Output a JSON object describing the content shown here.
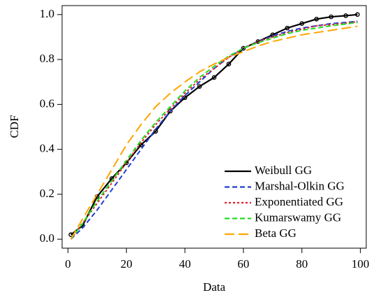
{
  "chart_data": {
    "type": "line",
    "xlabel": "Data",
    "ylabel": "CDF",
    "x": [
      1,
      5,
      10,
      15,
      20,
      25,
      30,
      35,
      40,
      45,
      50,
      55,
      60,
      65,
      70,
      75,
      80,
      85,
      90,
      95,
      99
    ],
    "series": [
      {
        "name": "Weibull GG",
        "color": "#000000",
        "dash": "solid",
        "markers": true,
        "values": [
          0.02,
          0.06,
          0.19,
          0.27,
          0.34,
          0.42,
          0.48,
          0.57,
          0.63,
          0.68,
          0.72,
          0.78,
          0.85,
          0.88,
          0.91,
          0.94,
          0.96,
          0.98,
          0.99,
          0.995,
          1.0
        ]
      },
      {
        "name": "Marshal-Olkin GG",
        "color": "#1f3fd0",
        "dash": "dashed",
        "values": [
          0.0,
          0.05,
          0.13,
          0.22,
          0.31,
          0.4,
          0.49,
          0.57,
          0.64,
          0.7,
          0.76,
          0.81,
          0.85,
          0.88,
          0.905,
          0.925,
          0.94,
          0.95,
          0.96,
          0.965,
          0.97
        ]
      },
      {
        "name": "Exponentiated GG",
        "color": "#e0202a",
        "dash": "dotted",
        "values": [
          0.0,
          0.07,
          0.16,
          0.25,
          0.34,
          0.43,
          0.51,
          0.58,
          0.65,
          0.71,
          0.76,
          0.81,
          0.85,
          0.88,
          0.9,
          0.92,
          0.935,
          0.95,
          0.955,
          0.962,
          0.968
        ]
      },
      {
        "name": "Kumarswamy GG",
        "color": "#22dd22",
        "dash": "dashed",
        "values": [
          0.0,
          0.07,
          0.17,
          0.26,
          0.35,
          0.44,
          0.52,
          0.59,
          0.66,
          0.72,
          0.77,
          0.815,
          0.85,
          0.875,
          0.895,
          0.915,
          0.93,
          0.94,
          0.95,
          0.958,
          0.965
        ]
      },
      {
        "name": "Beta GG",
        "color": "#ffa500",
        "dash": "longdash",
        "values": [
          0.0,
          0.09,
          0.2,
          0.31,
          0.42,
          0.51,
          0.59,
          0.65,
          0.7,
          0.745,
          0.78,
          0.81,
          0.835,
          0.86,
          0.88,
          0.895,
          0.91,
          0.92,
          0.93,
          0.94,
          0.948
        ]
      }
    ],
    "xlim": [
      -2,
      102
    ],
    "xticks": [
      0,
      20,
      40,
      60,
      80,
      100
    ],
    "ylim": [
      -0.04,
      1.04
    ],
    "yticks": [
      {
        "value": 0,
        "label": "0.0"
      },
      {
        "value": 0.2,
        "label": "0.2"
      },
      {
        "value": 0.4,
        "label": "0.4"
      },
      {
        "value": 0.6,
        "label": "0.6"
      },
      {
        "value": 0.8,
        "label": "0.8"
      },
      {
        "value": 1,
        "label": "1.0"
      }
    ],
    "legend": "lower right"
  }
}
